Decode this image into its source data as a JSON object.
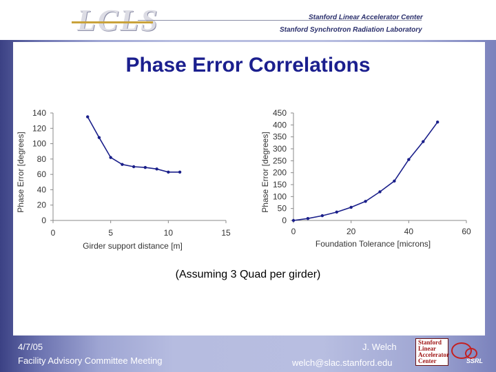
{
  "header": {
    "logo_text": "LCLS",
    "org_line1": "Stanford Linear Accelerator Center",
    "org_line2": "Stanford Synchrotron Radiation Laboratory"
  },
  "slide": {
    "title": "Phase Error Correlations",
    "note": "(Assuming 3 Quad per girder)"
  },
  "footer": {
    "date": "4/7/05",
    "meeting": "Facility Advisory Committee Meeting",
    "author": "J. Welch",
    "email": "welch@slac.stanford.edu",
    "logo_lines": [
      "Stanford",
      "Linear",
      "Accelerator",
      "Center"
    ],
    "logo_ssrl": "SSRL"
  },
  "colors": {
    "title_blue": "#1b1f8e",
    "series_line": "#1a1f8a",
    "axis_grey": "#888888",
    "tick_label": "#333333",
    "slide_bg": "#b6bce0"
  },
  "chart_data": [
    {
      "type": "line",
      "title": "",
      "xlabel": "Girder support distance [m]",
      "ylabel": "Phase Error [degrees]",
      "xlim": [
        0,
        15
      ],
      "ylim": [
        0,
        140
      ],
      "xticks": [
        0,
        5,
        10,
        15
      ],
      "yticks": [
        0,
        20,
        40,
        60,
        80,
        100,
        120,
        140
      ],
      "grid": false,
      "series": [
        {
          "x": [
            3,
            4,
            5,
            6,
            7,
            8,
            9,
            10,
            11
          ],
          "y": [
            135,
            108,
            82,
            73,
            70,
            69,
            67,
            63,
            63
          ]
        }
      ]
    },
    {
      "type": "line",
      "title": "",
      "xlabel": "Foundation Tolerance [microns]",
      "ylabel": "Phase Error [degrees]",
      "xlim": [
        0,
        60
      ],
      "ylim": [
        0,
        450
      ],
      "xticks": [
        0,
        20,
        40,
        60
      ],
      "yticks": [
        0,
        50,
        100,
        150,
        200,
        250,
        300,
        350,
        400,
        450
      ],
      "grid": false,
      "series": [
        {
          "x": [
            0,
            5,
            10,
            15,
            20,
            25,
            30,
            35,
            40,
            45,
            50
          ],
          "y": [
            0,
            8,
            20,
            35,
            55,
            80,
            120,
            165,
            255,
            330,
            412
          ]
        }
      ]
    }
  ]
}
